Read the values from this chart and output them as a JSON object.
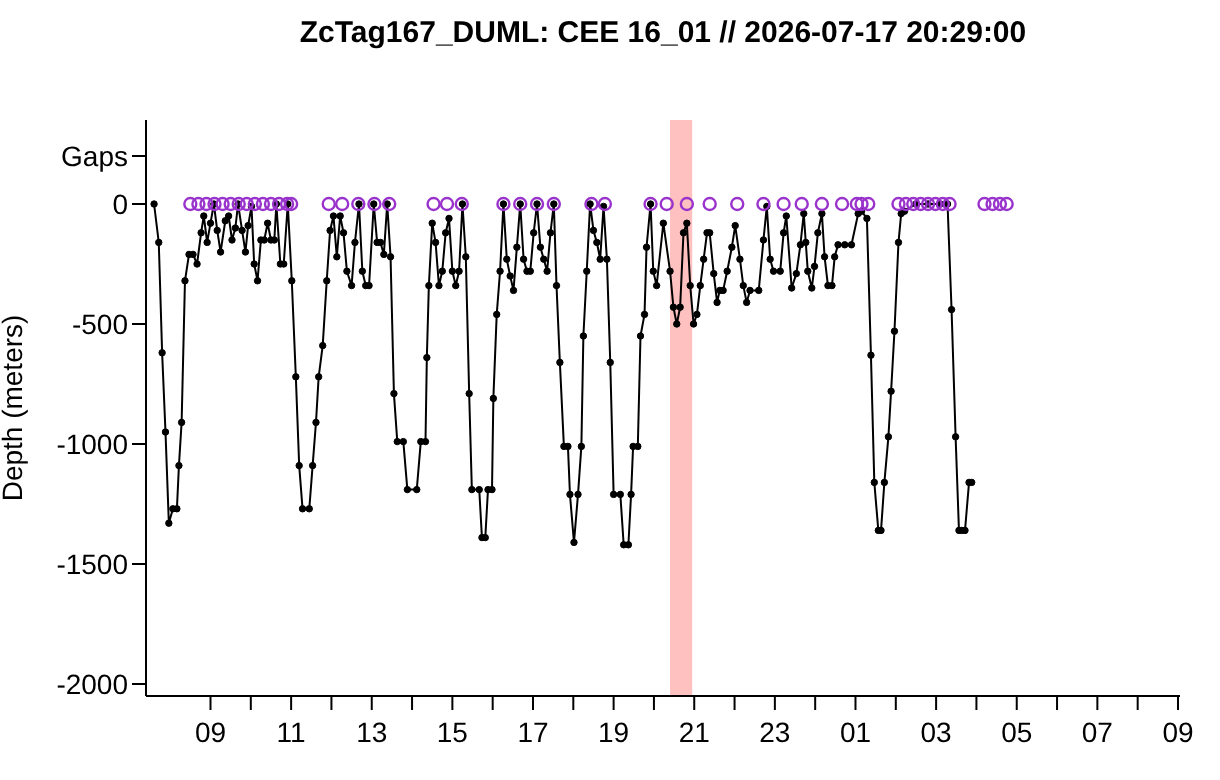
{
  "chart_data": {
    "type": "line",
    "title": "ZcTag167_DUML: CEE 16_01 // 2026-07-17 20:29:00",
    "ylabel": "Depth (meters)",
    "xlim": [
      "2026-07-17T07:24",
      "2026-07-18T09:03"
    ],
    "xticks": [
      {
        "value": "2026-07-17T09:00",
        "label": "09"
      },
      {
        "value": "2026-07-17T10:00",
        "label": null
      },
      {
        "value": "2026-07-17T11:00",
        "label": "11"
      },
      {
        "value": "2026-07-17T12:00",
        "label": null
      },
      {
        "value": "2026-07-17T13:00",
        "label": "13"
      },
      {
        "value": "2026-07-17T14:00",
        "label": null
      },
      {
        "value": "2026-07-17T15:00",
        "label": "15"
      },
      {
        "value": "2026-07-17T16:00",
        "label": null
      },
      {
        "value": "2026-07-17T17:00",
        "label": "17"
      },
      {
        "value": "2026-07-17T18:00",
        "label": null
      },
      {
        "value": "2026-07-17T19:00",
        "label": "19"
      },
      {
        "value": "2026-07-17T20:00",
        "label": null
      },
      {
        "value": "2026-07-17T21:00",
        "label": "21"
      },
      {
        "value": "2026-07-17T22:00",
        "label": null
      },
      {
        "value": "2026-07-17T23:00",
        "label": "23"
      },
      {
        "value": "2026-07-18T00:00",
        "label": null
      },
      {
        "value": "2026-07-18T01:00",
        "label": "01"
      },
      {
        "value": "2026-07-18T02:00",
        "label": null
      },
      {
        "value": "2026-07-18T03:00",
        "label": "03"
      },
      {
        "value": "2026-07-18T04:00",
        "label": null
      },
      {
        "value": "2026-07-18T05:00",
        "label": "05"
      },
      {
        "value": "2026-07-18T06:00",
        "label": null
      },
      {
        "value": "2026-07-18T07:00",
        "label": "07"
      },
      {
        "value": "2026-07-18T08:00",
        "label": null
      },
      {
        "value": "2026-07-18T09:00",
        "label": "09"
      }
    ],
    "ylim": [
      -2050,
      350
    ],
    "yticks": [
      -2000,
      -1500,
      -1000,
      -500,
      0,
      {
        "value": 200,
        "label": "Gaps"
      }
    ],
    "grid": false,
    "legend": false,
    "bands": [
      {
        "axis": "x",
        "from": "2026-07-17T20:24",
        "to": "2026-07-17T20:57",
        "color": "#ffc0c0"
      }
    ],
    "series": [
      {
        "type": "line",
        "color": "#000000",
        "marker": "circle",
        "line_style": "solid",
        "x": [
          "2026-07-17T07:36",
          "2026-07-17T07:43",
          "2026-07-17T07:48",
          "2026-07-17T07:53",
          "2026-07-17T07:58",
          "2026-07-17T08:04",
          "2026-07-17T08:10",
          "2026-07-17T08:13",
          "2026-07-17T08:17",
          "2026-07-17T08:22",
          "2026-07-17T08:28",
          "2026-07-17T08:34",
          "2026-07-17T08:40",
          "2026-07-17T08:46",
          "2026-07-17T08:50",
          "2026-07-17T08:55",
          "2026-07-17T09:00",
          "2026-07-17T09:05",
          "2026-07-17T09:10",
          "2026-07-17T09:15",
          "2026-07-17T09:22",
          "2026-07-17T09:27",
          "2026-07-17T09:32",
          "2026-07-17T09:37",
          "2026-07-17T09:41",
          "2026-07-17T09:47",
          "2026-07-17T09:52",
          "2026-07-17T09:56",
          "2026-07-17T10:01",
          "2026-07-17T10:05",
          "2026-07-17T10:10",
          "2026-07-17T10:15",
          "2026-07-17T10:20",
          "2026-07-17T10:25",
          "2026-07-17T10:30",
          "2026-07-17T10:35",
          "2026-07-17T10:38",
          "2026-07-17T10:44",
          "2026-07-17T10:49",
          "2026-07-17T10:55",
          "2026-07-17T11:01",
          "2026-07-17T11:07",
          "2026-07-17T11:12",
          "2026-07-17T11:17",
          "2026-07-17T11:27",
          "2026-07-17T11:32",
          "2026-07-17T11:37",
          "2026-07-17T11:41",
          "2026-07-17T11:47",
          "2026-07-17T11:53",
          "2026-07-17T11:58",
          "2026-07-17T12:03",
          "2026-07-17T12:08",
          "2026-07-17T12:13",
          "2026-07-17T12:18",
          "2026-07-17T12:23",
          "2026-07-17T12:30",
          "2026-07-17T12:35",
          "2026-07-17T12:41",
          "2026-07-17T12:46",
          "2026-07-17T12:51",
          "2026-07-17T12:56",
          "2026-07-17T13:03",
          "2026-07-17T13:08",
          "2026-07-17T13:13",
          "2026-07-17T13:18",
          "2026-07-17T13:23",
          "2026-07-17T13:28",
          "2026-07-17T13:33",
          "2026-07-17T13:38",
          "2026-07-17T13:47",
          "2026-07-17T13:53",
          "2026-07-17T14:07",
          "2026-07-17T14:13",
          "2026-07-17T14:20",
          "2026-07-17T14:22",
          "2026-07-17T14:25",
          "2026-07-17T14:30",
          "2026-07-17T14:35",
          "2026-07-17T14:40",
          "2026-07-17T14:45",
          "2026-07-17T14:50",
          "2026-07-17T14:55",
          "2026-07-17T15:00",
          "2026-07-17T15:05",
          "2026-07-17T15:10",
          "2026-07-17T15:15",
          "2026-07-17T15:20",
          "2026-07-17T15:25",
          "2026-07-17T15:29",
          "2026-07-17T15:40",
          "2026-07-17T15:44",
          "2026-07-17T15:49",
          "2026-07-17T15:53",
          "2026-07-17T15:59",
          "2026-07-17T16:01",
          "2026-07-17T16:06",
          "2026-07-17T16:11",
          "2026-07-17T16:16",
          "2026-07-17T16:21",
          "2026-07-17T16:26",
          "2026-07-17T16:31",
          "2026-07-17T16:36",
          "2026-07-17T16:41",
          "2026-07-17T16:46",
          "2026-07-17T16:51",
          "2026-07-17T16:56",
          "2026-07-17T17:01",
          "2026-07-17T17:06",
          "2026-07-17T17:11",
          "2026-07-17T17:16",
          "2026-07-17T17:21",
          "2026-07-17T17:26",
          "2026-07-17T17:31",
          "2026-07-17T17:35",
          "2026-07-17T17:40",
          "2026-07-17T17:46",
          "2026-07-17T17:52",
          "2026-07-17T17:55",
          "2026-07-17T18:01",
          "2026-07-17T18:07",
          "2026-07-17T18:12",
          "2026-07-17T18:15",
          "2026-07-17T18:20",
          "2026-07-17T18:25",
          "2026-07-17T18:30",
          "2026-07-17T18:35",
          "2026-07-17T18:40",
          "2026-07-17T18:45",
          "2026-07-17T18:50",
          "2026-07-17T18:55",
          "2026-07-17T19:00",
          "2026-07-17T19:10",
          "2026-07-17T19:15",
          "2026-07-17T19:22",
          "2026-07-17T19:26",
          "2026-07-17T19:29",
          "2026-07-17T19:36",
          "2026-07-17T19:40",
          "2026-07-17T19:46",
          "2026-07-17T19:49",
          "2026-07-17T19:55",
          "2026-07-17T19:59",
          "2026-07-17T20:04",
          "2026-07-17T20:14",
          "2026-07-17T20:24",
          "2026-07-17T20:29",
          "2026-07-17T20:34",
          "2026-07-17T20:39",
          "2026-07-17T20:44",
          "2026-07-17T20:49",
          "2026-07-17T20:54",
          "2026-07-17T20:59",
          "2026-07-17T21:04",
          "2026-07-17T21:09",
          "2026-07-17T21:14",
          "2026-07-17T21:19",
          "2026-07-17T21:23",
          "2026-07-17T21:29",
          "2026-07-17T21:34",
          "2026-07-17T21:38",
          "2026-07-17T21:43",
          "2026-07-17T21:49",
          "2026-07-17T21:56",
          "2026-07-17T22:01",
          "2026-07-17T22:08",
          "2026-07-17T22:13",
          "2026-07-17T22:18",
          "2026-07-17T22:23",
          "2026-07-17T22:36",
          "2026-07-17T22:43",
          "2026-07-17T22:48",
          "2026-07-17T22:53",
          "2026-07-17T22:58",
          "2026-07-17T23:08",
          "2026-07-17T23:13",
          "2026-07-17T23:17",
          "2026-07-17T23:25",
          "2026-07-17T23:32",
          "2026-07-17T23:38",
          "2026-07-17T23:43",
          "2026-07-17T23:46",
          "2026-07-17T23:49",
          "2026-07-17T23:55",
          "2026-07-17T23:59",
          "2026-07-18T00:04",
          "2026-07-18T00:10",
          "2026-07-18T00:14",
          "2026-07-18T00:19",
          "2026-07-18T00:25",
          "2026-07-18T00:29",
          "2026-07-18T00:34",
          "2026-07-18T00:44",
          "2026-07-18T00:54",
          "2026-07-18T01:04",
          "2026-07-18T01:09",
          "2026-07-18T01:17",
          "2026-07-18T01:23",
          "2026-07-18T01:28",
          "2026-07-18T01:34",
          "2026-07-18T01:38",
          "2026-07-18T01:43",
          "2026-07-18T01:49",
          "2026-07-18T01:53",
          "2026-07-18T01:58",
          "2026-07-18T02:04",
          "2026-07-18T02:08",
          "2026-07-18T02:13",
          "2026-07-18T02:30",
          "2026-07-18T02:48",
          "2026-07-18T03:06",
          "2026-07-18T03:17",
          "2026-07-18T03:23",
          "2026-07-18T03:29",
          "2026-07-18T03:34",
          "2026-07-18T03:38",
          "2026-07-18T03:43",
          "2026-07-18T03:49",
          "2026-07-18T03:53"
        ],
        "values": [
          0,
          -160,
          -620,
          -950,
          -1330,
          -1270,
          -1270,
          -1090,
          -910,
          -320,
          -210,
          -210,
          -250,
          -120,
          -50,
          -160,
          -80,
          0,
          -110,
          -200,
          -70,
          -50,
          -150,
          -100,
          0,
          -110,
          -200,
          -90,
          -10,
          -250,
          -320,
          -150,
          -150,
          -80,
          -150,
          -150,
          0,
          -250,
          -250,
          0,
          -320,
          -720,
          -1090,
          -1270,
          -1270,
          -1090,
          -910,
          -720,
          -590,
          -320,
          -110,
          -50,
          -220,
          -50,
          -120,
          -280,
          -340,
          -160,
          0,
          -280,
          -340,
          -340,
          0,
          -160,
          -160,
          -210,
          0,
          -220,
          -790,
          -990,
          -990,
          -1190,
          -1190,
          -990,
          -990,
          -640,
          -340,
          -80,
          -160,
          -340,
          -280,
          -120,
          -60,
          -280,
          -340,
          -280,
          0,
          -220,
          -790,
          -1190,
          -1190,
          -1390,
          -1390,
          -1190,
          -1190,
          -810,
          -460,
          -280,
          0,
          -230,
          -300,
          -360,
          -180,
          0,
          -230,
          -280,
          -280,
          -120,
          0,
          -180,
          -230,
          -280,
          -120,
          0,
          -340,
          -660,
          -1010,
          -1010,
          -1210,
          -1410,
          -1210,
          -1010,
          -550,
          -280,
          0,
          -110,
          -160,
          -230,
          -10,
          -230,
          -660,
          -1210,
          -1210,
          -1420,
          -1420,
          -1210,
          -1010,
          -1010,
          -550,
          -460,
          -180,
          0,
          -280,
          -340,
          -80,
          -280,
          -430,
          -500,
          -430,
          -120,
          -80,
          -340,
          -500,
          -460,
          -340,
          -230,
          -120,
          -120,
          -290,
          -410,
          -360,
          -360,
          -280,
          -180,
          -90,
          -230,
          -340,
          -410,
          -360,
          -360,
          -150,
          -10,
          -230,
          -280,
          -280,
          -120,
          -50,
          -350,
          -290,
          -170,
          -40,
          -160,
          -280,
          -350,
          -260,
          -120,
          -40,
          -220,
          -340,
          -340,
          -220,
          -170,
          -170,
          -170,
          -40,
          -30,
          -60,
          -630,
          -1160,
          -1360,
          -1360,
          -1160,
          -970,
          -780,
          -530,
          -160,
          -40,
          -30,
          0,
          0,
          0,
          0,
          -440,
          -970,
          -1360,
          -1360,
          -1360,
          -1160,
          -1160
        ]
      },
      {
        "type": "scatter",
        "color": "#9933cc",
        "marker": "circle",
        "x": [
          "2026-07-17T08:30",
          "2026-07-17T08:42",
          "2026-07-17T08:54",
          "2026-07-17T09:06",
          "2026-07-17T09:18",
          "2026-07-17T09:30",
          "2026-07-17T09:42",
          "2026-07-17T09:54",
          "2026-07-17T10:06",
          "2026-07-17T10:18",
          "2026-07-17T10:30",
          "2026-07-17T10:42",
          "2026-07-17T10:54",
          "2026-07-17T11:00",
          "2026-07-17T11:56",
          "2026-07-17T12:16",
          "2026-07-17T12:40",
          "2026-07-17T13:04",
          "2026-07-17T13:26",
          "2026-07-17T14:32",
          "2026-07-17T14:52",
          "2026-07-17T15:14",
          "2026-07-17T16:16",
          "2026-07-17T16:41",
          "2026-07-17T17:06",
          "2026-07-17T17:31",
          "2026-07-17T18:27",
          "2026-07-17T18:47",
          "2026-07-17T19:55",
          "2026-07-17T20:19",
          "2026-07-17T20:49",
          "2026-07-17T21:23",
          "2026-07-17T22:04",
          "2026-07-17T22:43",
          "2026-07-17T23:13",
          "2026-07-17T23:40",
          "2026-07-18T00:10",
          "2026-07-18T00:40",
          "2026-07-18T01:02",
          "2026-07-18T01:09",
          "2026-07-18T01:19",
          "2026-07-18T02:04",
          "2026-07-18T02:15",
          "2026-07-18T02:26",
          "2026-07-18T02:37",
          "2026-07-18T02:48",
          "2026-07-18T02:59",
          "2026-07-18T03:10",
          "2026-07-18T03:20",
          "2026-07-18T04:12",
          "2026-07-18T04:24",
          "2026-07-18T04:35",
          "2026-07-18T04:45"
        ],
        "values": [
          0,
          0,
          0,
          0,
          0,
          0,
          0,
          0,
          0,
          0,
          0,
          0,
          0,
          0,
          0,
          0,
          0,
          0,
          0,
          0,
          0,
          0,
          0,
          0,
          0,
          0,
          0,
          0,
          0,
          0,
          0,
          0,
          0,
          0,
          0,
          0,
          0,
          0,
          0,
          0,
          0,
          0,
          0,
          0,
          0,
          0,
          0,
          0,
          0,
          0,
          0,
          0,
          0
        ]
      }
    ]
  }
}
